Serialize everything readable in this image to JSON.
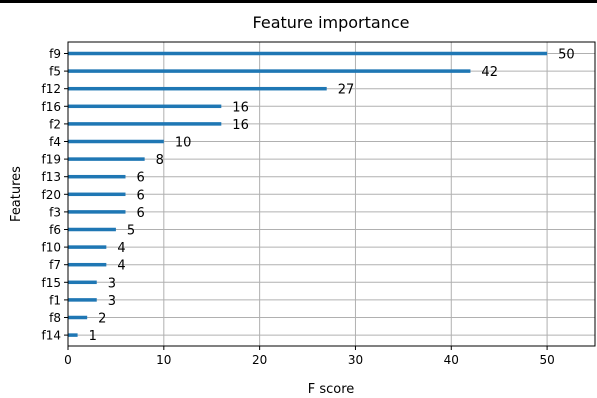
{
  "chart_data": {
    "type": "bar",
    "orientation": "horizontal",
    "title": "Feature importance",
    "xlabel": "F score",
    "ylabel": "Features",
    "xlim": [
      0,
      55
    ],
    "xticks": [
      0,
      10,
      20,
      30,
      40,
      50
    ],
    "grid": true,
    "bar_color": "#1f77b4",
    "categories": [
      "f9",
      "f5",
      "f12",
      "f16",
      "f2",
      "f4",
      "f19",
      "f13",
      "f20",
      "f3",
      "f6",
      "f10",
      "f7",
      "f15",
      "f1",
      "f8",
      "f14"
    ],
    "values": [
      50,
      42,
      27,
      16,
      16,
      10,
      8,
      6,
      6,
      6,
      5,
      4,
      4,
      3,
      3,
      2,
      1
    ],
    "value_labels": [
      "50",
      "42",
      "27",
      "16",
      "16",
      "10",
      "8",
      "6",
      "6",
      "6",
      "5",
      "4",
      "4",
      "3",
      "3",
      "2",
      "1"
    ]
  }
}
